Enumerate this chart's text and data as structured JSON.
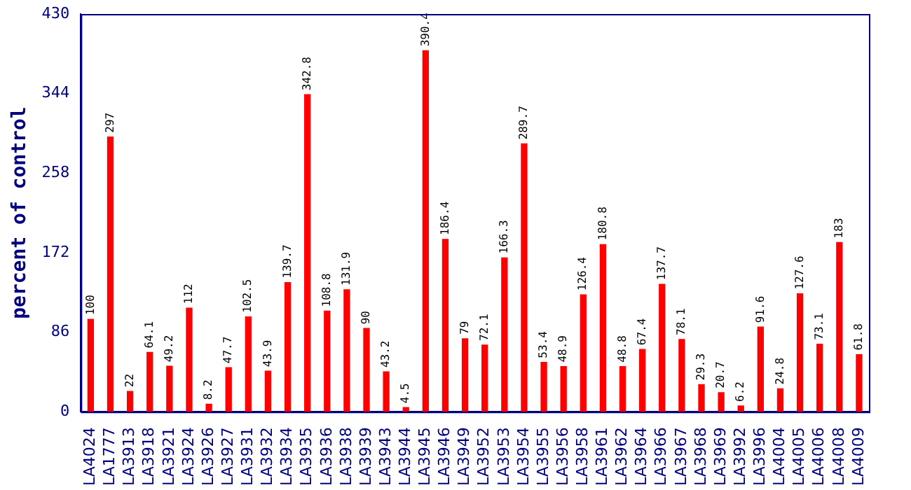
{
  "chart_data": {
    "type": "bar",
    "ylabel": "percent of control",
    "categories": [
      "LA4024",
      "LA1777",
      "LA3913",
      "LA3918",
      "LA3921",
      "LA3924",
      "LA3926",
      "LA3927",
      "LA3931",
      "LA3932",
      "LA3934",
      "LA3935",
      "LA3936",
      "LA3938",
      "LA3939",
      "LA3943",
      "LA3944",
      "LA3945",
      "LA3946",
      "LA3949",
      "LA3952",
      "LA3953",
      "LA3954",
      "LA3955",
      "LA3956",
      "LA3958",
      "LA3961",
      "LA3962",
      "LA3964",
      "LA3966",
      "LA3967",
      "LA3968",
      "LA3969",
      "LA3992",
      "LA3996",
      "LA4004",
      "LA4005",
      "LA4006",
      "LA4008",
      "LA4009"
    ],
    "values": [
      100,
      297,
      22,
      64.1,
      49.2,
      112,
      8.2,
      47.7,
      102.5,
      43.9,
      139.7,
      342.8,
      108.8,
      131.9,
      90,
      43.2,
      4.5,
      390.4,
      186.4,
      79,
      72.1,
      166.3,
      289.7,
      53.4,
      48.9,
      126.4,
      180.8,
      48.8,
      67.4,
      137.7,
      78.1,
      29.3,
      20.7,
      6.2,
      91.6,
      24.8,
      127.6,
      73.1,
      183,
      61.8
    ],
    "color": "#ff0000",
    "ylim": [
      0,
      430
    ],
    "yticks": [
      0,
      86,
      172,
      258,
      344,
      430
    ],
    "grid": false,
    "legend": false,
    "data_labels": true
  }
}
